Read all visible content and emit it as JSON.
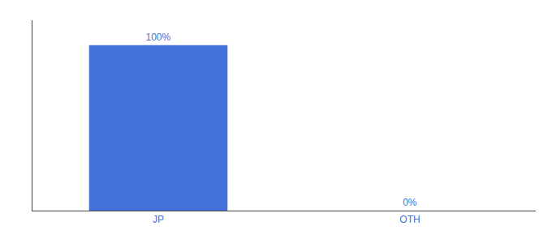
{
  "chart_data": {
    "type": "bar",
    "categories": [
      "JP",
      "OTH"
    ],
    "values": [
      100,
      0
    ],
    "value_labels": [
      "100%",
      "0%"
    ],
    "data_labels": true,
    "color": "#4472d9",
    "ylim": [
      0,
      115
    ],
    "tick_labels": "x",
    "grid": false
  }
}
